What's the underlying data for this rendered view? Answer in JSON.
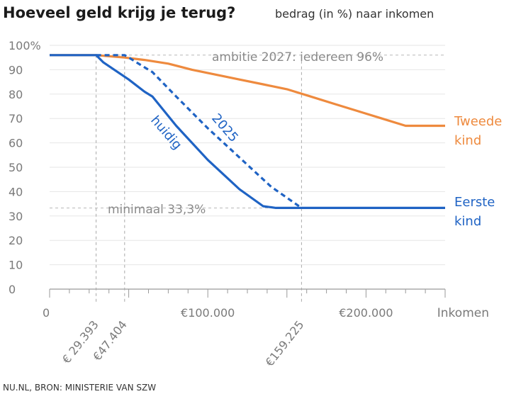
{
  "chart_data": {
    "type": "line",
    "title": "Hoeveel geld krijg je terug?",
    "subtitle": "bedrag (in %) naar inkomen",
    "xlabel": "Inkomen",
    "ylabel": "",
    "xlim": [
      0,
      250000
    ],
    "ylim": [
      0,
      100
    ],
    "y_ticks": [
      "0",
      "10",
      "20",
      "30",
      "40",
      "50",
      "60",
      "70",
      "80",
      "90",
      "100%"
    ],
    "x_ticks": [
      {
        "value": 0,
        "label": "0"
      },
      {
        "value": 100000,
        "label": "€100.000"
      },
      {
        "value": 200000,
        "label": "€200.000"
      }
    ],
    "x_markers": [
      {
        "value": 29393,
        "label": "€ 29.393"
      },
      {
        "value": 47404,
        "label": "€47.404"
      },
      {
        "value": 159225,
        "label": "€159.225"
      }
    ],
    "grid": true,
    "series": [
      {
        "name": "Tweede kind",
        "color": "#ee8a3e",
        "dash": false,
        "x": [
          0,
          29393,
          47404,
          60000,
          75000,
          90000,
          105000,
          120000,
          135000,
          150000,
          165000,
          180000,
          195000,
          210000,
          225000,
          250000
        ],
        "y": [
          96,
          96,
          95,
          94,
          92.5,
          90,
          88,
          86,
          84,
          82,
          79,
          76,
          73,
          70,
          67,
          67
        ]
      },
      {
        "name": "Eerste kind",
        "color": "#1f63c4",
        "dash": false,
        "x": [
          0,
          29393,
          34000,
          50000,
          60000,
          65000,
          80000,
          100000,
          120000,
          135000,
          143000,
          250000
        ],
        "y": [
          96,
          96,
          93,
          86,
          81,
          79,
          67,
          53,
          41,
          34,
          33.3,
          33.3
        ]
      },
      {
        "name": "",
        "color": "#1f63c4",
        "dash": true,
        "x": [
          29393,
          47404,
          50000,
          60000,
          65000,
          80000,
          100000,
          120000,
          140000,
          159225
        ],
        "y": [
          96,
          96,
          95,
          91,
          89,
          79,
          66,
          54,
          42,
          33.3
        ]
      }
    ],
    "annotations": {
      "ambitie": "ambitie 2027: iedereen 96%",
      "minimaal": "minimaal 33,3%",
      "huidig": "huidig",
      "y2025": "2025"
    },
    "legend_labels": {
      "tweede_line1": "Tweede",
      "tweede_line2": "kind",
      "eerste_line1": "Eerste",
      "eerste_line2": "kind"
    }
  },
  "source": "NU.NL, BRON: MINISTERIE VAN SZW"
}
